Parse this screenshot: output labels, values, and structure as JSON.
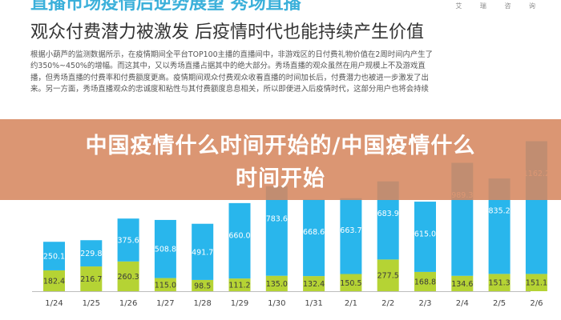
{
  "header": {
    "top_heading": "直播市场疫情后逆势展望 秀场直播",
    "logo_text": "艾 瑞 咨 询",
    "subtitle": "观众付费潜力被激发 后疫情时代也能持续产生价值"
  },
  "paragraph": [
    "根据小葫芦的监测数据所示，在疫情期间全平台TOP100主播的直播间中，非游戏区的日付费礼物价值在2周时间内产生了",
    "约350%~450%的增幅。而这其中，又以秀场直播占据其中的绝大部分。秀场直播的观众虽然在用户规模上不及游戏直",
    "播，但秀场直播的付费率和付费额度更高。疫情期间观众付费观众收看直播的时间加长后，付费潜力也被进一步激发了出",
    "来。另一方面，秀场直播观众的忠诚度和粘性与其付费额度息息相关，所以即便进入后疫情时代，这部分用户也将会持续"
  ],
  "banner": {
    "line1": "中国疫情什么时间开始的/中国疫情什么",
    "line2": "时间开始"
  },
  "colors": {
    "top_series": "#29b6ec",
    "bottom_series": "#b5d334",
    "banner": "#d68860"
  },
  "chart_data": {
    "type": "bar",
    "stacked": true,
    "categories": [
      "1/24",
      "1/25",
      "1/26",
      "1/27",
      "1/28",
      "1/29",
      "1/30",
      "1/31",
      "2/1",
      "2/2",
      "2/3",
      "2/4",
      "2/5",
      "2/6"
    ],
    "series": [
      {
        "values": [
          182.4,
          216.7,
          260.3,
          115.0,
          98.5,
          111.2,
          135.0,
          132.4,
          150.5,
          277.5,
          168.8,
          134.6,
          151.3,
          151.1
        ]
      },
      {
        "values": [
          250.1,
          229.8,
          375.6,
          508.8,
          491.7,
          660.0,
          783.6,
          668.6,
          663.7,
          683.9,
          615.0,
          989.3,
          835.2,
          1162.2
        ]
      }
    ],
    "title": "",
    "xlabel": "",
    "ylabel": ""
  }
}
